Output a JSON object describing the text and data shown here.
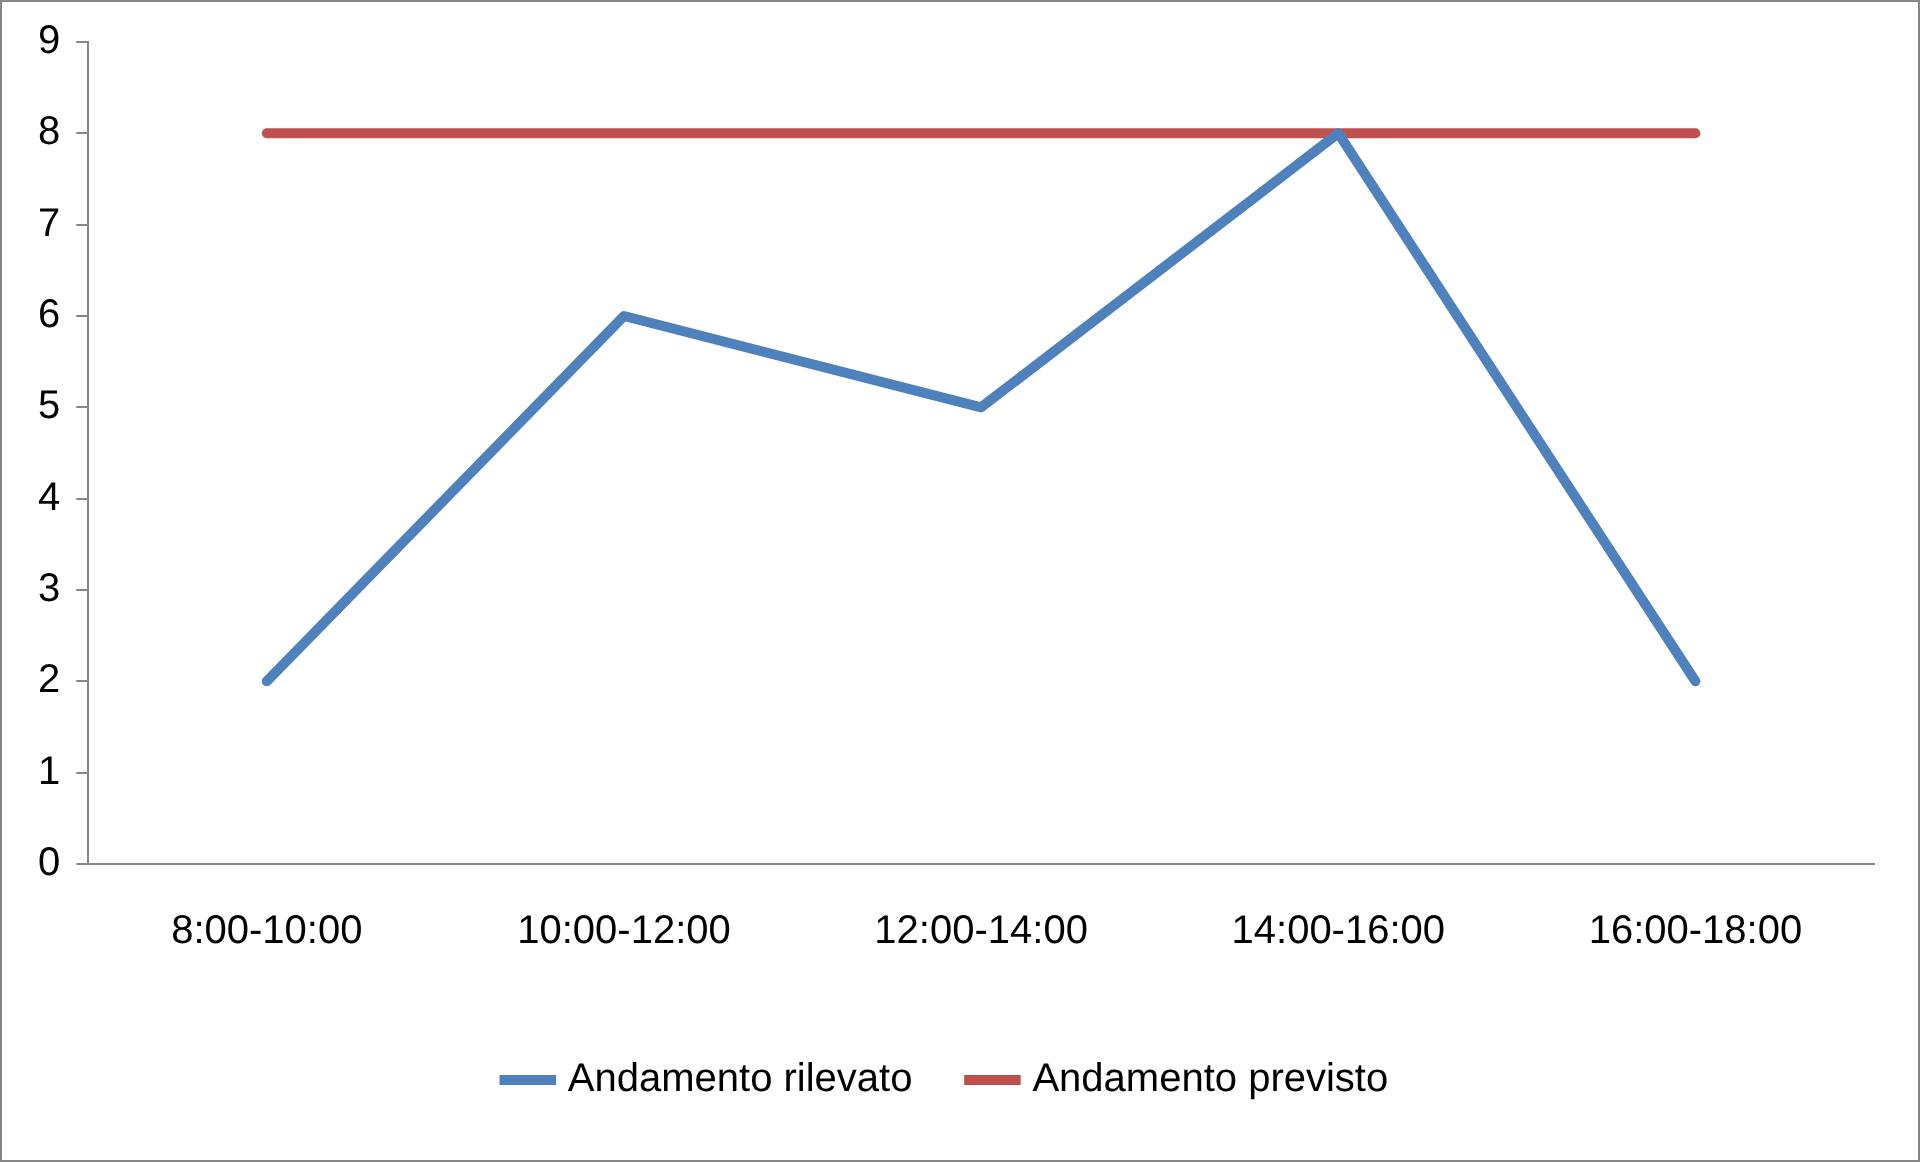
{
  "chart_data": {
    "type": "line",
    "categories": [
      "8:00-10:00",
      "10:00-12:00",
      "12:00-14:00",
      "14:00-16:00",
      "16:00-18:00"
    ],
    "series": [
      {
        "name": "Andamento rilevato",
        "color": "#4f81bd",
        "values": [
          2,
          6,
          5,
          8,
          2
        ]
      },
      {
        "name": "Andamento previsto",
        "color": "#c0504d",
        "values": [
          8,
          8,
          8,
          8,
          8
        ]
      }
    ],
    "ylim": [
      0,
      9
    ],
    "yticks": [
      0,
      1,
      2,
      3,
      4,
      5,
      6,
      7,
      8,
      9
    ],
    "grid": false,
    "legend": "bottom",
    "marker": "none",
    "line_style": "solid"
  }
}
